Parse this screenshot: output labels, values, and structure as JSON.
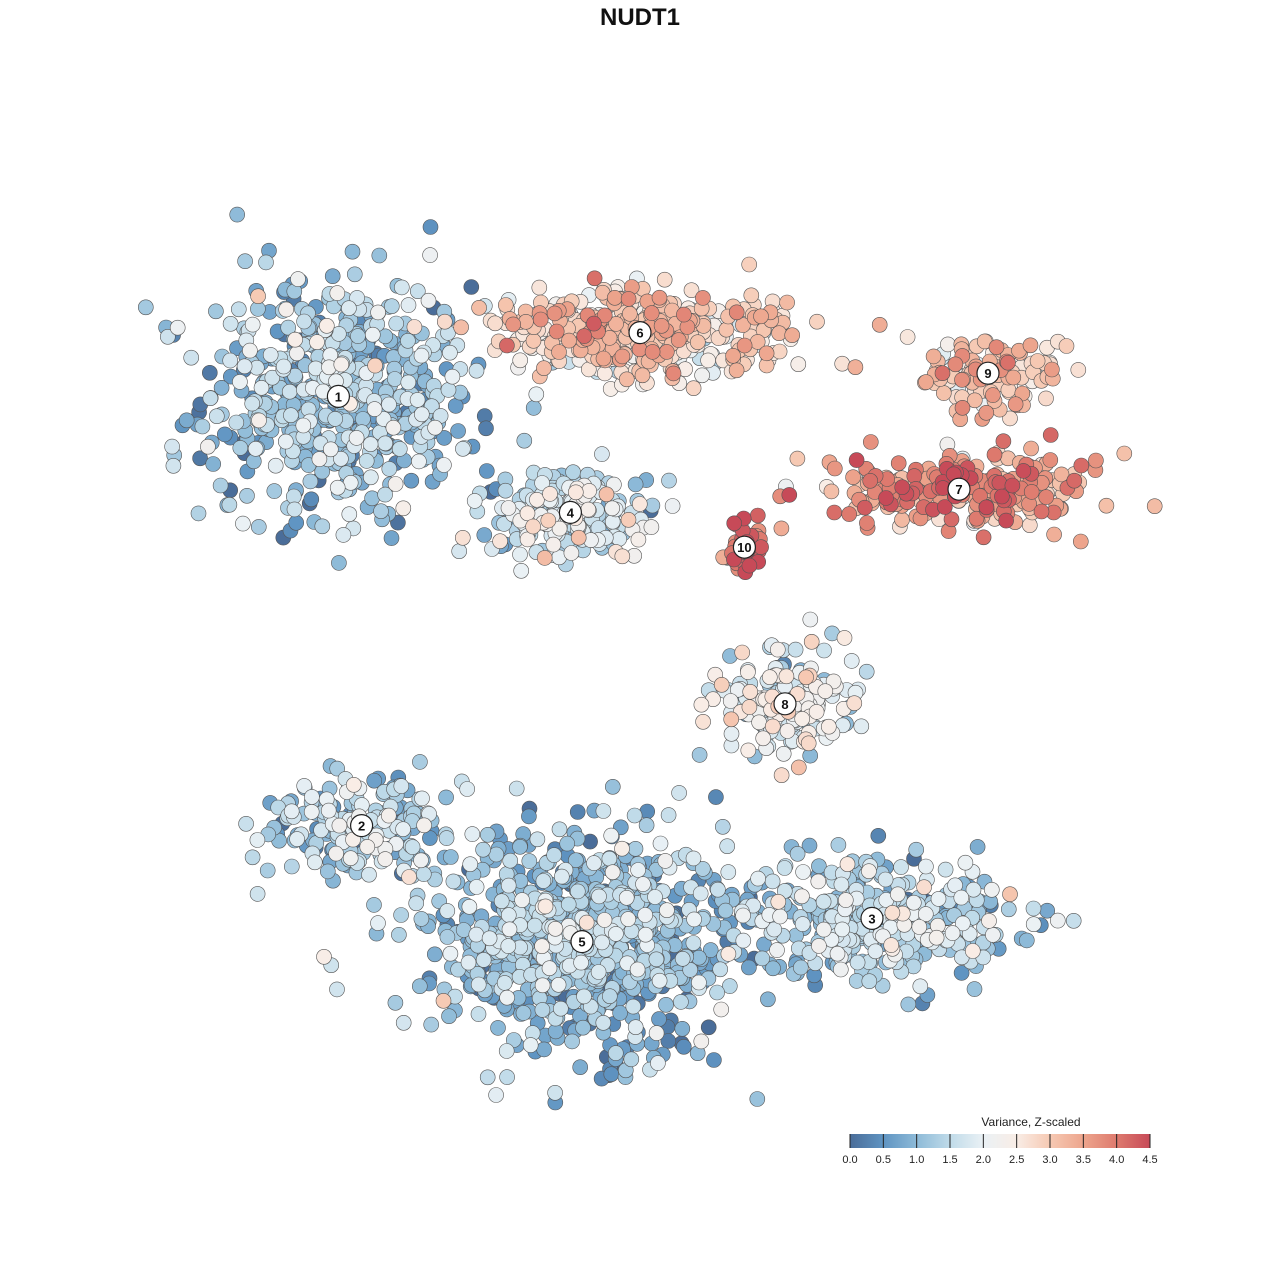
{
  "chart_data": {
    "type": "scatter",
    "title": "NUDT1",
    "xlabel": "",
    "ylabel": "",
    "colorbar": {
      "label": "Variance, Z-scaled",
      "min": 0.0,
      "max": 4.5,
      "ticks": [
        "0.0",
        "0.5",
        "1.0",
        "1.5",
        "2.0",
        "2.5",
        "3.0",
        "3.5",
        "4.0",
        "4.5"
      ],
      "colors": [
        "#4a6d99",
        "#5f94c2",
        "#8dbad8",
        "#c0dbe9",
        "#eaf1f5",
        "#f9ede6",
        "#f6c9b3",
        "#eda58d",
        "#de7a6e",
        "#c74a58"
      ]
    },
    "clusters": [
      {
        "label": "1",
        "x": -5.2,
        "y": 4.2,
        "sx": 2.1,
        "sy": 1.9,
        "n": 620,
        "mean": 1.1
      },
      {
        "label": "2",
        "x": -4.8,
        "y": -3.2,
        "sx": 1.6,
        "sy": 0.9,
        "n": 200,
        "mean": 1.4
      },
      {
        "label": "3",
        "x": 4.0,
        "y": -4.8,
        "sx": 2.2,
        "sy": 0.9,
        "n": 420,
        "mean": 1.3
      },
      {
        "label": "4",
        "x": -1.2,
        "y": 2.2,
        "sx": 1.3,
        "sy": 0.7,
        "n": 230,
        "mean": 1.6
      },
      {
        "label": "5",
        "x": -1.0,
        "y": -5.2,
        "sx": 2.3,
        "sy": 1.6,
        "n": 900,
        "mean": 1.0
      },
      {
        "label": "6",
        "x": 0.0,
        "y": 5.3,
        "sx": 2.3,
        "sy": 0.7,
        "n": 420,
        "mean": 2.7
      },
      {
        "label": "7",
        "x": 5.5,
        "y": 2.6,
        "sx": 2.0,
        "sy": 0.6,
        "n": 250,
        "mean": 3.6
      },
      {
        "label": "8",
        "x": 2.5,
        "y": -1.1,
        "sx": 1.1,
        "sy": 0.8,
        "n": 180,
        "mean": 2.0
      },
      {
        "label": "9",
        "x": 6.0,
        "y": 4.6,
        "sx": 1.3,
        "sy": 0.6,
        "n": 120,
        "mean": 3.0
      },
      {
        "label": "10",
        "x": 1.8,
        "y": 1.6,
        "sx": 0.35,
        "sy": 0.4,
        "n": 45,
        "mean": 4.1
      }
    ],
    "xlim": [
      -9.5,
      9.5
    ],
    "ylim": [
      -8.5,
      8.5
    ],
    "grid": false,
    "legend_position": "bottom-right"
  }
}
